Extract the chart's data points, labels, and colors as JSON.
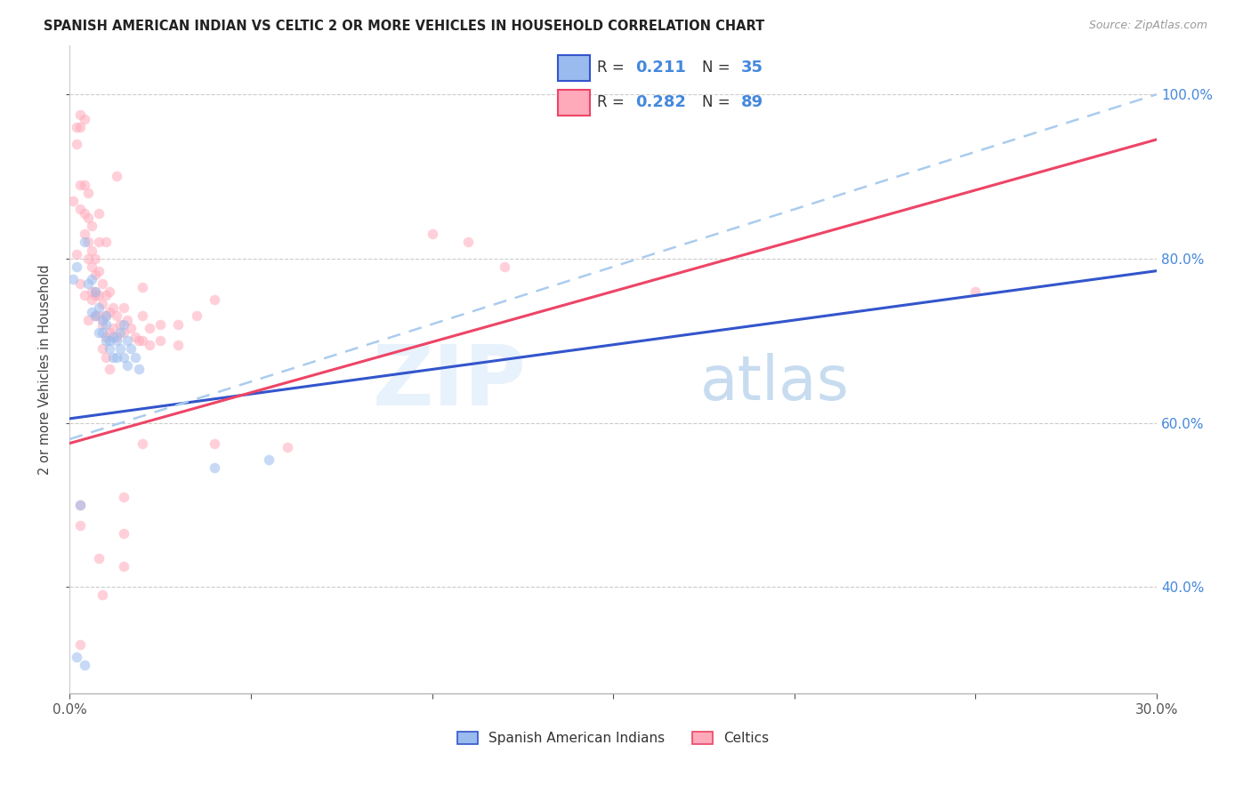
{
  "title": "SPANISH AMERICAN INDIAN VS CELTIC 2 OR MORE VEHICLES IN HOUSEHOLD CORRELATION CHART",
  "source": "Source: ZipAtlas.com",
  "ylabel": "2 or more Vehicles in Household",
  "watermark_zip": "ZIP",
  "watermark_atlas": "atlas",
  "xmin": 0.0,
  "xmax": 0.3,
  "ymin": 0.27,
  "ymax": 1.06,
  "yticks": [
    0.4,
    0.6,
    0.8,
    1.0
  ],
  "ytick_labels": [
    "40.0%",
    "60.0%",
    "80.0%",
    "100.0%"
  ],
  "xticks": [
    0.0,
    0.05,
    0.1,
    0.15,
    0.2,
    0.25,
    0.3
  ],
  "xtick_labels": [
    "0.0%",
    "",
    "",
    "",
    "",
    "",
    "30.0%"
  ],
  "grid_color": "#cccccc",
  "blue_scatter_color": "#99bbee",
  "pink_scatter_color": "#ffaabb",
  "blue_line_color": "#3355cc",
  "pink_line_color": "#ee4466",
  "dashed_line_color": "#aaccee",
  "right_axis_color": "#4488dd",
  "scatter_alpha": 0.55,
  "scatter_size": 70,
  "blue_scatter": [
    [
      0.001,
      0.775
    ],
    [
      0.002,
      0.79
    ],
    [
      0.004,
      0.82
    ],
    [
      0.005,
      0.77
    ],
    [
      0.006,
      0.735
    ],
    [
      0.006,
      0.775
    ],
    [
      0.007,
      0.73
    ],
    [
      0.007,
      0.76
    ],
    [
      0.008,
      0.71
    ],
    [
      0.008,
      0.74
    ],
    [
      0.009,
      0.725
    ],
    [
      0.009,
      0.71
    ],
    [
      0.01,
      0.7
    ],
    [
      0.01,
      0.73
    ],
    [
      0.01,
      0.72
    ],
    [
      0.011,
      0.7
    ],
    [
      0.011,
      0.69
    ],
    [
      0.012,
      0.705
    ],
    [
      0.012,
      0.68
    ],
    [
      0.013,
      0.7
    ],
    [
      0.013,
      0.68
    ],
    [
      0.014,
      0.71
    ],
    [
      0.014,
      0.69
    ],
    [
      0.015,
      0.72
    ],
    [
      0.015,
      0.68
    ],
    [
      0.016,
      0.7
    ],
    [
      0.016,
      0.67
    ],
    [
      0.017,
      0.69
    ],
    [
      0.018,
      0.68
    ],
    [
      0.019,
      0.665
    ],
    [
      0.003,
      0.5
    ],
    [
      0.04,
      0.545
    ],
    [
      0.055,
      0.555
    ],
    [
      0.004,
      0.305
    ],
    [
      0.002,
      0.315
    ]
  ],
  "pink_scatter": [
    [
      0.001,
      0.87
    ],
    [
      0.002,
      0.96
    ],
    [
      0.002,
      0.94
    ],
    [
      0.003,
      0.975
    ],
    [
      0.003,
      0.96
    ],
    [
      0.004,
      0.97
    ],
    [
      0.003,
      0.89
    ],
    [
      0.003,
      0.86
    ],
    [
      0.004,
      0.89
    ],
    [
      0.004,
      0.855
    ],
    [
      0.005,
      0.88
    ],
    [
      0.005,
      0.85
    ],
    [
      0.005,
      0.82
    ],
    [
      0.005,
      0.8
    ],
    [
      0.006,
      0.84
    ],
    [
      0.006,
      0.81
    ],
    [
      0.006,
      0.79
    ],
    [
      0.006,
      0.76
    ],
    [
      0.007,
      0.8
    ],
    [
      0.007,
      0.78
    ],
    [
      0.007,
      0.755
    ],
    [
      0.007,
      0.73
    ],
    [
      0.008,
      0.785
    ],
    [
      0.008,
      0.755
    ],
    [
      0.008,
      0.73
    ],
    [
      0.009,
      0.77
    ],
    [
      0.009,
      0.745
    ],
    [
      0.009,
      0.72
    ],
    [
      0.01,
      0.755
    ],
    [
      0.01,
      0.73
    ],
    [
      0.01,
      0.705
    ],
    [
      0.011,
      0.76
    ],
    [
      0.011,
      0.735
    ],
    [
      0.011,
      0.71
    ],
    [
      0.012,
      0.74
    ],
    [
      0.012,
      0.715
    ],
    [
      0.013,
      0.73
    ],
    [
      0.013,
      0.705
    ],
    [
      0.014,
      0.72
    ],
    [
      0.015,
      0.74
    ],
    [
      0.015,
      0.71
    ],
    [
      0.016,
      0.725
    ],
    [
      0.017,
      0.715
    ],
    [
      0.018,
      0.705
    ],
    [
      0.019,
      0.7
    ],
    [
      0.02,
      0.73
    ],
    [
      0.02,
      0.7
    ],
    [
      0.022,
      0.715
    ],
    [
      0.022,
      0.695
    ],
    [
      0.025,
      0.72
    ],
    [
      0.025,
      0.7
    ],
    [
      0.03,
      0.72
    ],
    [
      0.03,
      0.695
    ],
    [
      0.035,
      0.73
    ],
    [
      0.04,
      0.75
    ],
    [
      0.002,
      0.805
    ],
    [
      0.004,
      0.83
    ],
    [
      0.008,
      0.855
    ],
    [
      0.008,
      0.82
    ],
    [
      0.01,
      0.82
    ],
    [
      0.013,
      0.9
    ],
    [
      0.02,
      0.765
    ],
    [
      0.02,
      0.575
    ],
    [
      0.04,
      0.575
    ],
    [
      0.06,
      0.57
    ],
    [
      0.003,
      0.475
    ],
    [
      0.015,
      0.465
    ],
    [
      0.015,
      0.425
    ],
    [
      0.008,
      0.435
    ],
    [
      0.009,
      0.39
    ],
    [
      0.25,
      0.76
    ],
    [
      0.1,
      0.83
    ],
    [
      0.11,
      0.82
    ],
    [
      0.12,
      0.79
    ],
    [
      0.003,
      0.33
    ],
    [
      0.003,
      0.77
    ],
    [
      0.004,
      0.755
    ],
    [
      0.005,
      0.725
    ],
    [
      0.006,
      0.75
    ],
    [
      0.007,
      0.76
    ],
    [
      0.009,
      0.69
    ],
    [
      0.01,
      0.68
    ],
    [
      0.011,
      0.665
    ],
    [
      0.003,
      0.5
    ],
    [
      0.015,
      0.51
    ]
  ],
  "blue_line_x": [
    0.0,
    0.3
  ],
  "blue_line_y": [
    0.605,
    0.785
  ],
  "pink_line_x": [
    0.0,
    0.3
  ],
  "pink_line_y": [
    0.575,
    0.945
  ],
  "dashed_line_x": [
    0.0,
    0.3
  ],
  "dashed_line_y": [
    0.58,
    1.0
  ]
}
